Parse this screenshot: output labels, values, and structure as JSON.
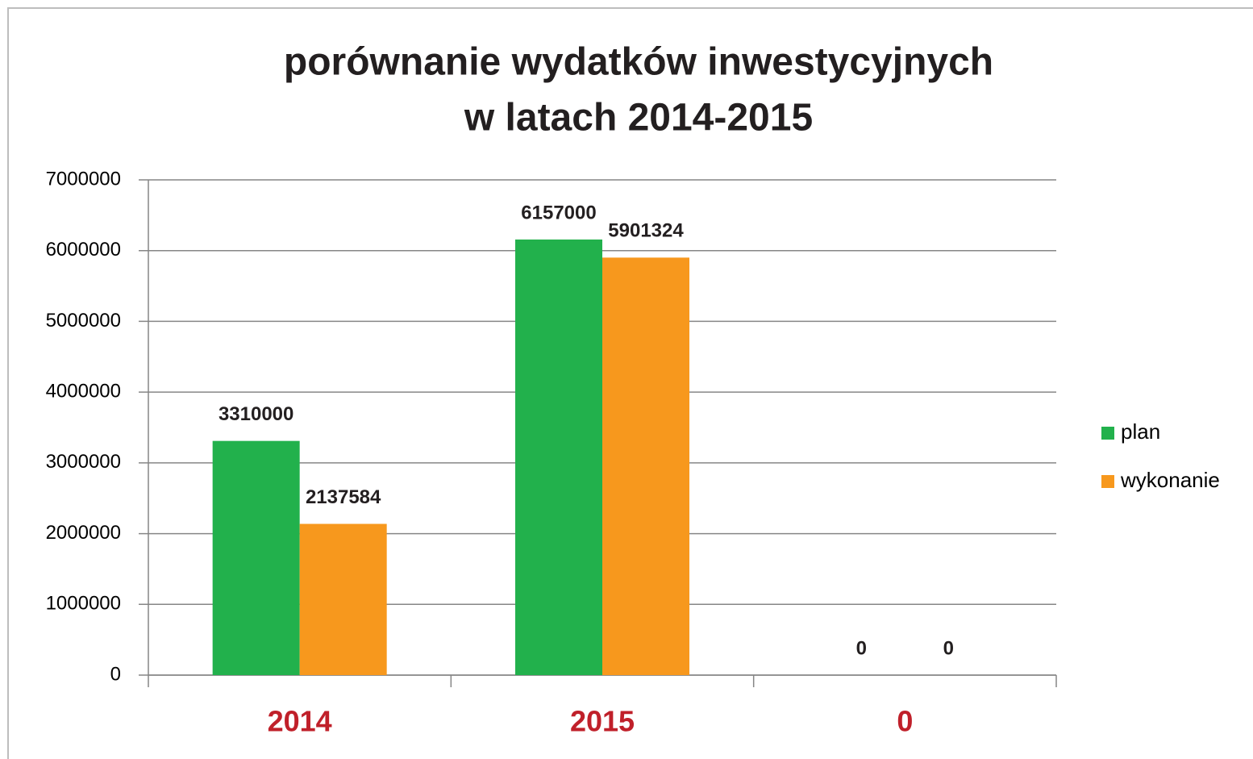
{
  "chart_data": {
    "type": "bar",
    "title": [
      "porównanie wydatków inwestycyjnych",
      "w latach 2014-2015"
    ],
    "categories": [
      "2014",
      "2015",
      "0"
    ],
    "series": [
      {
        "name": "plan",
        "color": "#22b14c",
        "values": [
          3310000,
          6157000,
          0
        ]
      },
      {
        "name": "wykonanie",
        "color": "#f7981d",
        "values": [
          2137584,
          5901324,
          0
        ]
      }
    ],
    "ylim": [
      0,
      7000000
    ],
    "yticks": [
      0,
      1000000,
      2000000,
      3000000,
      4000000,
      5000000,
      6000000,
      7000000
    ],
    "grid": true,
    "legend": "right"
  }
}
